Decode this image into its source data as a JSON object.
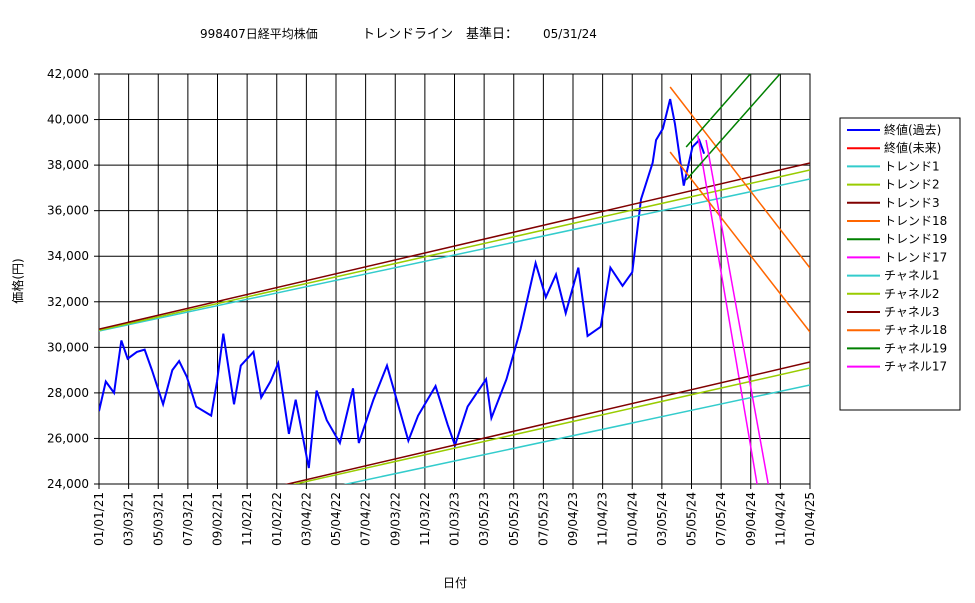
{
  "chart_data": {
    "type": "line",
    "title": "998407日経平均株価",
    "annotations": [
      "トレンドライン　基準日：",
      "05/31/24"
    ],
    "x_label": "日付",
    "y_label": "価格(円)",
    "xlim": [
      "2021-01-01",
      "2025-01-04"
    ],
    "xticks": [
      {
        "value": "2021-01-01",
        "label": "01/01/21"
      },
      {
        "value": "2021-03-03",
        "label": "03/03/21"
      },
      {
        "value": "2021-05-03",
        "label": "05/03/21"
      },
      {
        "value": "2021-07-03",
        "label": "07/03/21"
      },
      {
        "value": "2021-09-02",
        "label": "09/02/21"
      },
      {
        "value": "2021-11-02",
        "label": "11/02/21"
      },
      {
        "value": "2022-01-02",
        "label": "01/02/22"
      },
      {
        "value": "2022-03-04",
        "label": "03/04/22"
      },
      {
        "value": "2022-05-04",
        "label": "05/04/22"
      },
      {
        "value": "2022-07-04",
        "label": "07/04/22"
      },
      {
        "value": "2022-09-03",
        "label": "09/03/22"
      },
      {
        "value": "2022-11-03",
        "label": "11/03/22"
      },
      {
        "value": "2023-01-03",
        "label": "01/03/23"
      },
      {
        "value": "2023-03-05",
        "label": "03/05/23"
      },
      {
        "value": "2023-05-05",
        "label": "05/05/23"
      },
      {
        "value": "2023-07-05",
        "label": "07/05/23"
      },
      {
        "value": "2023-09-04",
        "label": "09/04/23"
      },
      {
        "value": "2023-11-04",
        "label": "11/04/23"
      },
      {
        "value": "2024-01-04",
        "label": "01/04/24"
      },
      {
        "value": "2024-03-05",
        "label": "03/05/24"
      },
      {
        "value": "2024-05-05",
        "label": "05/05/24"
      },
      {
        "value": "2024-07-05",
        "label": "07/05/24"
      },
      {
        "value": "2024-09-04",
        "label": "09/04/24"
      },
      {
        "value": "2024-11-04",
        "label": "11/04/24"
      },
      {
        "value": "2025-01-04",
        "label": "01/04/25"
      }
    ],
    "ylim": [
      24000,
      42000
    ],
    "yticks": [
      {
        "value": 24000,
        "label": "24,000"
      },
      {
        "value": 26000,
        "label": "26,000"
      },
      {
        "value": 28000,
        "label": "28,000"
      },
      {
        "value": 30000,
        "label": "30,000"
      },
      {
        "value": 32000,
        "label": "32,000"
      },
      {
        "value": 34000,
        "label": "34,000"
      },
      {
        "value": 36000,
        "label": "36,000"
      },
      {
        "value": 38000,
        "label": "38,000"
      },
      {
        "value": 40000,
        "label": "40,000"
      },
      {
        "value": 42000,
        "label": "42,000"
      }
    ],
    "grid": true,
    "series": [
      {
        "name": "終値(過去)",
        "color": "#0000ff",
        "width": 2,
        "x": [
          "2021-01-01",
          "2021-01-15",
          "2021-02-01",
          "2021-02-16",
          "2021-03-01",
          "2021-03-20",
          "2021-04-05",
          "2021-04-20",
          "2021-05-13",
          "2021-06-01",
          "2021-06-15",
          "2021-07-01",
          "2021-07-20",
          "2021-08-20",
          "2021-09-01",
          "2021-09-14",
          "2021-10-06",
          "2021-10-20",
          "2021-11-15",
          "2021-12-01",
          "2021-12-20",
          "2022-01-05",
          "2022-01-27",
          "2022-02-10",
          "2022-03-09",
          "2022-03-25",
          "2022-04-15",
          "2022-05-12",
          "2022-06-08",
          "2022-06-20",
          "2022-07-20",
          "2022-08-17",
          "2022-09-30",
          "2022-10-20",
          "2022-11-25",
          "2022-12-20",
          "2023-01-04",
          "2023-01-30",
          "2023-03-09",
          "2023-03-20",
          "2023-04-20",
          "2023-05-19",
          "2023-06-19",
          "2023-07-10",
          "2023-07-31",
          "2023-08-20",
          "2023-09-15",
          "2023-10-04",
          "2023-10-31",
          "2023-11-20",
          "2023-12-15",
          "2024-01-04",
          "2024-01-22",
          "2024-02-15",
          "2024-02-22",
          "2024-03-07",
          "2024-03-22",
          "2024-04-01",
          "2024-04-19",
          "2024-05-07",
          "2024-05-21",
          "2024-05-31"
        ],
        "values": [
          27200,
          28500,
          28000,
          30300,
          29500,
          29800,
          29900,
          29000,
          27500,
          29000,
          29400,
          28700,
          27400,
          27000,
          28500,
          30600,
          27500,
          29200,
          29800,
          27800,
          28500,
          29300,
          26200,
          27700,
          24700,
          28100,
          26800,
          25800,
          28200,
          25800,
          27700,
          29200,
          25900,
          27000,
          28300,
          26600,
          25700,
          27400,
          28600,
          26900,
          28600,
          30800,
          33700,
          32200,
          33200,
          31500,
          33500,
          30500,
          30900,
          33500,
          32700,
          33300,
          36500,
          38100,
          39100,
          39600,
          40900,
          39800,
          37100,
          38800,
          39100,
          38500
        ]
      },
      {
        "name": "終値(未来)",
        "color": "#ff0000",
        "width": 2,
        "x": [],
        "values": []
      },
      {
        "name": "トレンド1",
        "color": "#33cccc",
        "width": 1.5,
        "x": [
          "2021-01-01",
          "2025-01-04"
        ],
        "values": [
          30717,
          37390
        ]
      },
      {
        "name": "トレンド2",
        "color": "#99cc00",
        "width": 1.5,
        "x": [
          "2021-01-01",
          "2025-01-04"
        ],
        "values": [
          30750,
          37785
        ]
      },
      {
        "name": "トレンド3",
        "color": "#800000",
        "width": 1.5,
        "x": [
          "2021-01-01",
          "2025-01-04"
        ],
        "values": [
          30800,
          38093
        ]
      },
      {
        "name": "トレンド18",
        "color": "#ff6600",
        "width": 1.5,
        "x": [
          "2024-03-22",
          "2025-01-04"
        ],
        "values": [
          41430,
          33483
        ]
      },
      {
        "name": "トレンド19",
        "color": "#008000",
        "width": 1.5,
        "x": [
          "2024-04-24",
          "2024-09-03"
        ],
        "values": [
          38795,
          42000
        ]
      },
      {
        "name": "トレンド17",
        "color": "#ff00ff",
        "width": 1.5,
        "x": [
          "2024-05-18",
          "2024-09-17"
        ],
        "values": [
          39300,
          24000
        ]
      },
      {
        "name": "チャネル1",
        "color": "#33cccc",
        "width": 1.5,
        "x": [
          "2021-01-01",
          "2025-01-04"
        ],
        "values": [
          21674,
          28347
        ]
      },
      {
        "name": "チャネル2",
        "color": "#99cc00",
        "width": 1.5,
        "x": [
          "2021-01-01",
          "2025-01-04"
        ],
        "values": [
          22057,
          29092
        ]
      },
      {
        "name": "チャネル3",
        "color": "#800000",
        "width": 1.5,
        "x": [
          "2021-01-01",
          "2025-01-04"
        ],
        "values": [
          22063,
          29356
        ]
      },
      {
        "name": "チャネル18",
        "color": "#ff6600",
        "width": 1.5,
        "x": [
          "2024-03-22",
          "2025-01-04"
        ],
        "values": [
          38575,
          30673
        ]
      },
      {
        "name": "チャネル19",
        "color": "#008000",
        "width": 1.5,
        "x": [
          "2024-04-24",
          "2024-11-03"
        ],
        "values": [
          37346,
          42000
        ]
      },
      {
        "name": "チャネル17",
        "color": "#ff00ff",
        "width": 1.5,
        "x": [
          "2024-06-04",
          "2024-10-10"
        ],
        "values": [
          39103,
          24000
        ]
      }
    ]
  }
}
